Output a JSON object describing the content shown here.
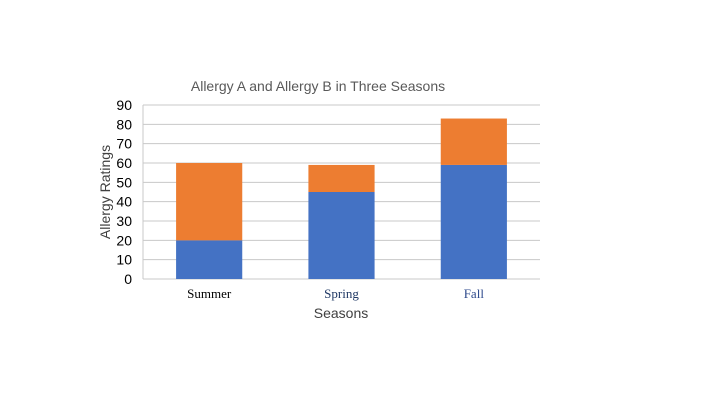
{
  "chart_data": {
    "type": "bar",
    "stacked": true,
    "title": "Allergy A and Allergy B in Three Seasons",
    "xlabel": "Seasons",
    "ylabel": "Allergy Ratings",
    "categories": [
      "Summer",
      "Spring",
      "Fall"
    ],
    "category_label_colors": [
      "#000000",
      "#1f3864",
      "#2e4a8c"
    ],
    "series": [
      {
        "values": [
          20,
          45,
          59
        ],
        "color": "#4472c4"
      },
      {
        "values": [
          40,
          14,
          24
        ],
        "color": "#ed7d31"
      }
    ],
    "ylim": [
      0,
      90
    ],
    "yticks": [
      0,
      10,
      20,
      30,
      40,
      50,
      60,
      70,
      80,
      90
    ],
    "grid": true,
    "legend": "none"
  }
}
